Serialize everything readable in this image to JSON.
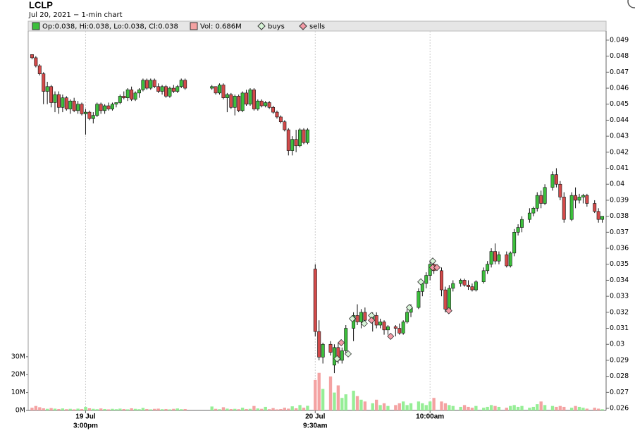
{
  "chart_data": {
    "type": "candlestick",
    "title": "LCLP",
    "subtitle": "Jul 20, 2021 − 1-min chart",
    "legend": {
      "ohlc": "Op:0.038, Hi:0.038, Lo:0.038, Cl:0.038",
      "volume": "Vol: 0.686M",
      "buys": "buys",
      "sells": "sells"
    },
    "up_color": "#3cbf3c",
    "down_color": "#d44a4a",
    "volume_up_color": "#96ee96",
    "volume_down_color": "#f4a2a2",
    "buy_color": "#d8f5d8",
    "sell_color": "#f49aa6",
    "xlim": [
      -1,
      150
    ],
    "xticks": [
      {
        "value": 14,
        "date": "19 Jul",
        "label": "3:00pm"
      },
      {
        "value": 74,
        "date": "20 Jul",
        "label": "9:30am"
      },
      {
        "value": 104,
        "label": "10:00am"
      }
    ],
    "ylim": [
      0.02587,
      0.04957
    ],
    "yticks": [
      0.026,
      0.027,
      0.028,
      0.029,
      0.03,
      0.031,
      0.032,
      0.033,
      0.034,
      0.035,
      0.036,
      0.037,
      0.038,
      0.039,
      0.04,
      0.041,
      0.042,
      0.043,
      0.044,
      0.045,
      0.046,
      0.047,
      0.048,
      0.049
    ],
    "y2lim": [
      0,
      212000000
    ],
    "y2ticks": [
      {
        "value": 0,
        "label": "0M"
      },
      {
        "value": 10000000,
        "label": "10M"
      },
      {
        "value": 20000000,
        "label": "20M"
      },
      {
        "value": 30000000,
        "label": "30M"
      }
    ],
    "x": [
      0,
      1,
      2,
      3,
      4,
      5,
      6,
      7,
      8,
      9,
      10,
      11,
      12,
      13,
      14,
      15,
      16,
      17,
      18,
      19,
      20,
      21,
      22,
      23,
      24,
      25,
      26,
      27,
      28,
      29,
      30,
      31,
      32,
      33,
      34,
      35,
      36,
      37,
      38,
      39,
      40,
      47,
      48,
      49,
      50,
      51,
      52,
      53,
      54,
      55,
      56,
      57,
      58,
      59,
      60,
      61,
      62,
      63,
      64,
      65,
      66,
      67,
      68,
      69,
      70,
      71,
      72,
      74,
      75,
      76,
      78,
      79,
      80,
      81,
      82,
      84,
      85,
      86,
      87,
      89,
      90,
      91,
      92,
      93,
      95,
      96,
      97,
      98,
      99,
      101,
      102,
      103,
      104,
      105,
      107,
      108,
      109,
      110,
      112,
      113,
      114,
      115,
      116,
      118,
      119,
      120,
      121,
      122,
      124,
      125,
      126,
      127,
      128,
      130,
      131,
      132,
      133,
      134,
      136,
      137,
      138,
      139,
      141,
      142,
      143,
      144,
      145,
      147,
      148,
      149
    ],
    "open": [
      0.0481,
      0.0479,
      0.0474,
      0.0469,
      0.0458,
      0.0461,
      0.0451,
      0.0456,
      0.0448,
      0.0454,
      0.0447,
      0.0452,
      0.0446,
      0.045,
      0.0444,
      0.0445,
      0.0441,
      0.0443,
      0.045,
      0.0446,
      0.0449,
      0.0447,
      0.045,
      0.0451,
      0.0455,
      0.0454,
      0.0459,
      0.0453,
      0.0457,
      0.0459,
      0.0465,
      0.046,
      0.0465,
      0.0461,
      0.0458,
      0.0461,
      0.0455,
      0.046,
      0.0458,
      0.0461,
      0.0465,
      0.046,
      0.0461,
      0.0457,
      0.0462,
      0.0454,
      0.0456,
      0.0448,
      0.0455,
      0.0446,
      0.0457,
      0.045,
      0.0459,
      0.0447,
      0.0452,
      0.0449,
      0.0451,
      0.0448,
      0.0445,
      0.0442,
      0.0439,
      0.0434,
      0.0421,
      0.0428,
      0.0424,
      0.0434,
      0.0426,
      0.0347,
      0.0308,
      0.0292,
      0.03,
      0.0287,
      0.0298,
      0.029,
      0.0296,
      0.031,
      0.0318,
      0.0314,
      0.032,
      0.0315,
      0.0318,
      0.0312,
      0.0314,
      0.0309,
      0.0311,
      0.031,
      0.0307,
      0.0314,
      0.032,
      0.0323,
      0.0333,
      0.0338,
      0.0343,
      0.035,
      0.0346,
      0.0334,
      0.0322,
      0.0335,
      0.0338,
      0.034,
      0.0337,
      0.0336,
      0.0334,
      0.0339,
      0.0346,
      0.035,
      0.0358,
      0.0352,
      0.0356,
      0.0349,
      0.0357,
      0.037,
      0.0373,
      0.0378,
      0.0382,
      0.0385,
      0.0393,
      0.0388,
      0.0398,
      0.0406,
      0.04,
      0.0392,
      0.0378,
      0.0393,
      0.039,
      0.0392,
      0.0393,
      0.0388,
      0.0383,
      0.0378
    ],
    "high": [
      0.0481,
      0.048,
      0.0475,
      0.047,
      0.0464,
      0.0462,
      0.0458,
      0.0458,
      0.0456,
      0.0455,
      0.0453,
      0.0454,
      0.0452,
      0.0451,
      0.0447,
      0.0446,
      0.0445,
      0.0451,
      0.0451,
      0.045,
      0.0451,
      0.0451,
      0.0451,
      0.0456,
      0.0458,
      0.046,
      0.0461,
      0.0458,
      0.046,
      0.0466,
      0.0466,
      0.0466,
      0.0466,
      0.0463,
      0.0462,
      0.0462,
      0.0461,
      0.0462,
      0.0462,
      0.0466,
      0.0466,
      0.0462,
      0.0461,
      0.0463,
      0.0463,
      0.0457,
      0.0457,
      0.0456,
      0.0456,
      0.0458,
      0.0459,
      0.046,
      0.046,
      0.0453,
      0.0453,
      0.0452,
      0.0452,
      0.0449,
      0.0446,
      0.0443,
      0.044,
      0.0435,
      0.043,
      0.0434,
      0.0435,
      0.0435,
      0.0435,
      0.035,
      0.0315,
      0.0301,
      0.0302,
      0.03,
      0.0301,
      0.0298,
      0.0312,
      0.032,
      0.0325,
      0.0322,
      0.0323,
      0.032,
      0.032,
      0.0316,
      0.0315,
      0.0312,
      0.0312,
      0.0313,
      0.0315,
      0.0322,
      0.0325,
      0.0335,
      0.034,
      0.0345,
      0.0352,
      0.0352,
      0.0348,
      0.0336,
      0.0337,
      0.034,
      0.0341,
      0.0341,
      0.034,
      0.0338,
      0.034,
      0.0348,
      0.0352,
      0.036,
      0.0363,
      0.0358,
      0.0358,
      0.0358,
      0.0372,
      0.0375,
      0.038,
      0.0385,
      0.0386,
      0.0395,
      0.0396,
      0.04,
      0.0408,
      0.041,
      0.0402,
      0.0395,
      0.0395,
      0.0398,
      0.0394,
      0.0394,
      0.0394,
      0.039,
      0.0385,
      0.038
    ],
    "low": [
      0.0478,
      0.0473,
      0.0468,
      0.045,
      0.045,
      0.0448,
      0.0445,
      0.0444,
      0.0445,
      0.0446,
      0.0444,
      0.0445,
      0.0444,
      0.0443,
      0.0431,
      0.044,
      0.0438,
      0.0442,
      0.0444,
      0.0444,
      0.0446,
      0.0446,
      0.0448,
      0.045,
      0.0453,
      0.0452,
      0.0452,
      0.0452,
      0.0454,
      0.0458,
      0.0459,
      0.0459,
      0.046,
      0.0457,
      0.0456,
      0.0454,
      0.0454,
      0.0457,
      0.0457,
      0.046,
      0.0459,
      0.0459,
      0.0456,
      0.0456,
      0.0453,
      0.0445,
      0.0447,
      0.0443,
      0.0445,
      0.0445,
      0.0449,
      0.0449,
      0.0446,
      0.0446,
      0.0448,
      0.0448,
      0.0447,
      0.0444,
      0.0441,
      0.0438,
      0.0433,
      0.0418,
      0.0418,
      0.042,
      0.0423,
      0.0425,
      0.0425,
      0.0305,
      0.029,
      0.0288,
      0.0293,
      0.0282,
      0.0288,
      0.0288,
      0.0294,
      0.0302,
      0.0312,
      0.031,
      0.0312,
      0.0308,
      0.031,
      0.031,
      0.0306,
      0.0306,
      0.0305,
      0.0306,
      0.0306,
      0.0313,
      0.0317,
      0.0322,
      0.033,
      0.0335,
      0.034,
      0.0344,
      0.033,
      0.032,
      0.0321,
      0.0333,
      0.0336,
      0.0336,
      0.0334,
      0.0333,
      0.0333,
      0.0338,
      0.0344,
      0.0348,
      0.035,
      0.035,
      0.0348,
      0.0348,
      0.0355,
      0.0368,
      0.037,
      0.0376,
      0.038,
      0.0383,
      0.0385,
      0.0387,
      0.0396,
      0.0398,
      0.039,
      0.0376,
      0.0377,
      0.0385,
      0.0388,
      0.0388,
      0.0386,
      0.0382,
      0.0376,
      0.0376
    ],
    "close": [
      0.0479,
      0.0474,
      0.0469,
      0.0458,
      0.0461,
      0.0451,
      0.0456,
      0.0448,
      0.0454,
      0.0447,
      0.0452,
      0.0446,
      0.045,
      0.0444,
      0.0445,
      0.0441,
      0.0443,
      0.045,
      0.0446,
      0.0449,
      0.0447,
      0.045,
      0.0451,
      0.0455,
      0.0454,
      0.0459,
      0.0453,
      0.0457,
      0.0459,
      0.0465,
      0.046,
      0.0465,
      0.0461,
      0.0458,
      0.0461,
      0.0455,
      0.046,
      0.0458,
      0.0461,
      0.0465,
      0.046,
      0.0461,
      0.0457,
      0.0462,
      0.0454,
      0.0456,
      0.0448,
      0.0455,
      0.0446,
      0.0457,
      0.045,
      0.0459,
      0.0447,
      0.0452,
      0.0449,
      0.0451,
      0.0448,
      0.0445,
      0.0442,
      0.0439,
      0.0434,
      0.0421,
      0.0428,
      0.0424,
      0.0434,
      0.0426,
      0.0434,
      0.0308,
      0.0292,
      0.03,
      0.0295,
      0.0298,
      0.029,
      0.0296,
      0.031,
      0.0318,
      0.0314,
      0.032,
      0.0315,
      0.0318,
      0.0312,
      0.0314,
      0.0309,
      0.0311,
      0.031,
      0.0307,
      0.0314,
      0.032,
      0.0323,
      0.0333,
      0.0338,
      0.0343,
      0.035,
      0.0346,
      0.0334,
      0.0322,
      0.0335,
      0.0338,
      0.034,
      0.0337,
      0.0336,
      0.0334,
      0.0339,
      0.0346,
      0.035,
      0.0358,
      0.0352,
      0.0356,
      0.0349,
      0.0357,
      0.037,
      0.0373,
      0.0378,
      0.0382,
      0.0385,
      0.0393,
      0.0388,
      0.0398,
      0.0406,
      0.04,
      0.0392,
      0.0378,
      0.0393,
      0.039,
      0.0392,
      0.0393,
      0.0388,
      0.0383,
      0.0378,
      0.038
    ],
    "volume": [
      1500000,
      2500000,
      1800000,
      1200000,
      900000,
      1300000,
      1000000,
      800000,
      1100000,
      700000,
      900000,
      600000,
      1000000,
      800000,
      2000000,
      1200000,
      900000,
      700000,
      1100000,
      800000,
      600000,
      900000,
      700000,
      1000000,
      800000,
      600000,
      1200000,
      900000,
      700000,
      1400000,
      800000,
      600000,
      900000,
      1000000,
      700000,
      800000,
      600000,
      900000,
      1100000,
      700000,
      800000,
      2200000,
      900000,
      700000,
      1800000,
      1000000,
      800000,
      900000,
      700000,
      1500000,
      800000,
      900000,
      2500000,
      1100000,
      900000,
      2000000,
      700000,
      1300000,
      600000,
      800000,
      1500000,
      1000000,
      2300000,
      1200000,
      3000000,
      1500000,
      2600000,
      17000000,
      21000000,
      12000000,
      19000000,
      10000000,
      14000000,
      7000000,
      9000000,
      11000000,
      8000000,
      6000000,
      5000000,
      4000000,
      6000000,
      3000000,
      4000000,
      2500000,
      3000000,
      4000000,
      5000000,
      3000000,
      4000000,
      5000000,
      4000000,
      3000000,
      5000000,
      7000000,
      5000000,
      4000000,
      3000000,
      2500000,
      2000000,
      3000000,
      2000000,
      1500000,
      2500000,
      1500000,
      2000000,
      3000000,
      2500000,
      2000000,
      1500000,
      2500000,
      3000000,
      2000000,
      2500000,
      1500000,
      2000000,
      3500000,
      5000000,
      3000000,
      2500000,
      2000000,
      2500000,
      2000000,
      1500000,
      2500000,
      2000000,
      1500000,
      1000000,
      1500000,
      1000000,
      686000
    ],
    "buys": {
      "x": [
        79.7,
        82.6,
        83.7,
        86.8,
        88.7,
        98.6,
        101.6,
        104.7
      ],
      "y": [
        0.0291,
        0.0294,
        0.0316,
        0.0313,
        0.0318,
        0.0323,
        0.0339,
        0.0352
      ]
    },
    "sells": {
      "x": [
        80.8,
        88.7,
        93.7,
        104.7,
        105.8,
        108.9
      ],
      "y": [
        0.0301,
        0.0315,
        0.0305,
        0.0348,
        0.0348,
        0.0321
      ]
    }
  }
}
